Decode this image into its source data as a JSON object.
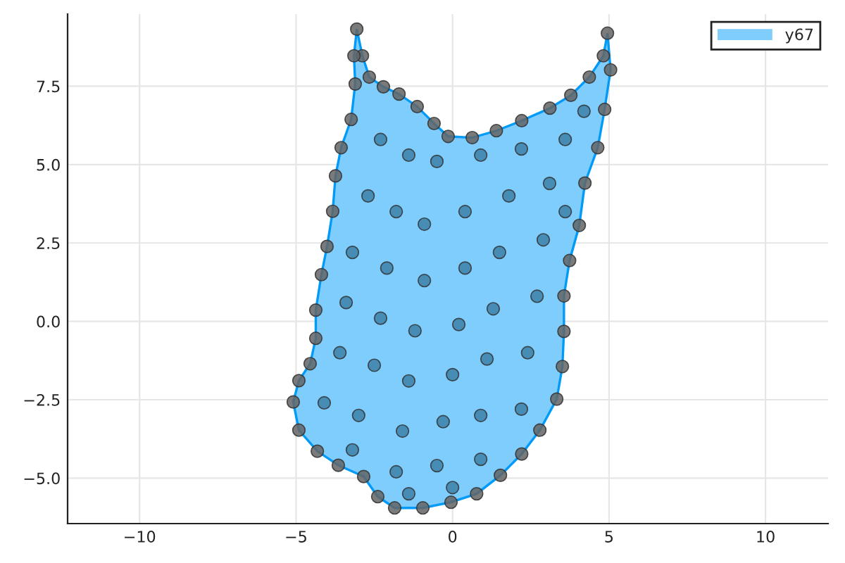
{
  "chart_data": {
    "type": "scatter",
    "xlim": [
      -12.3,
      12.0
    ],
    "ylim": [
      -6.45,
      9.8
    ],
    "xticks": [
      {
        "value": -10,
        "label": "−10"
      },
      {
        "value": -5,
        "label": "−5"
      },
      0,
      5,
      10
    ],
    "yticks": [
      {
        "value": -5,
        "label": "−5.0"
      },
      {
        "value": -2.5,
        "label": "−2.5"
      },
      {
        "value": 0,
        "label": "0.0"
      },
      {
        "value": 2.5,
        "label": "2.5"
      },
      {
        "value": 5.0,
        "label": "5.0"
      },
      {
        "value": 7.5,
        "label": "7.5"
      }
    ],
    "grid": true,
    "legend": "top right",
    "series": [
      {
        "name": "y67",
        "type": "area",
        "color": "#7fcdfd",
        "x": [
          -3.06,
          -2.88,
          -2.66,
          -2.21,
          -1.71,
          -1.13,
          -0.59,
          -0.14,
          0.63,
          1.4,
          2.21,
          3.11,
          3.78,
          4.37,
          4.82,
          4.95,
          5.05,
          4.86,
          4.64,
          4.23,
          4.05,
          3.74,
          3.56,
          3.56,
          3.51,
          3.33,
          2.79,
          2.21,
          1.53,
          0.77,
          -0.05,
          -0.95,
          -1.85,
          -2.39,
          -2.84,
          -3.65,
          -4.32,
          -4.91,
          -5.09,
          -4.91,
          -4.55,
          -4.37,
          -4.37,
          -4.19,
          -4.01,
          -3.83,
          -3.74,
          -3.56,
          -3.24,
          -3.11,
          -3.15
        ],
        "values": [
          9.32,
          8.47,
          7.79,
          7.48,
          7.25,
          6.85,
          6.31,
          5.9,
          5.86,
          6.08,
          6.4,
          6.8,
          7.21,
          7.79,
          8.47,
          9.19,
          8.02,
          6.76,
          5.54,
          4.41,
          3.06,
          1.94,
          0.81,
          -0.32,
          -1.44,
          -2.48,
          -3.47,
          -4.23,
          -4.91,
          -5.5,
          -5.77,
          -5.95,
          -5.95,
          -5.59,
          -4.95,
          -4.59,
          -4.14,
          -3.47,
          -2.57,
          -1.89,
          -1.35,
          -0.54,
          0.36,
          1.49,
          2.39,
          3.51,
          4.64,
          5.54,
          6.44,
          7.57,
          8.47
        ]
      },
      {
        "color": "#646464",
        "marker": "circle",
        "x": [
          -3.06,
          -2.88,
          -2.66,
          -2.21,
          -1.71,
          -1.13,
          -0.59,
          -0.14,
          0.63,
          1.4,
          2.21,
          3.11,
          3.78,
          4.37,
          4.82,
          4.95,
          5.05,
          4.86,
          4.64,
          4.23,
          4.05,
          3.74,
          3.56,
          3.56,
          3.51,
          3.33,
          2.79,
          2.21,
          1.53,
          0.77,
          -0.05,
          -0.95,
          -1.85,
          -2.39,
          -2.84,
          -3.65,
          -4.32,
          -4.91,
          -5.09,
          -4.91,
          -4.55,
          -4.37,
          -4.37,
          -4.19,
          -4.01,
          -3.83,
          -3.74,
          -3.56,
          -3.24,
          -3.11,
          -3.15
        ],
        "values": [
          9.32,
          8.47,
          7.79,
          7.48,
          7.25,
          6.85,
          6.31,
          5.9,
          5.86,
          6.08,
          6.4,
          6.8,
          7.21,
          7.79,
          8.47,
          9.19,
          8.02,
          6.76,
          5.54,
          4.41,
          3.06,
          1.94,
          0.81,
          -0.32,
          -1.44,
          -2.48,
          -3.47,
          -4.23,
          -4.91,
          -5.5,
          -5.77,
          -5.95,
          -5.95,
          -5.59,
          -4.95,
          -4.59,
          -4.14,
          -3.47,
          -2.57,
          -1.89,
          -1.35,
          -0.54,
          0.36,
          1.49,
          2.39,
          3.51,
          4.64,
          5.54,
          6.44,
          7.57,
          8.47
        ]
      },
      {
        "color": "#3d80a8",
        "marker": "circle",
        "x": [
          -2.3,
          -1.4,
          -0.5,
          0.9,
          2.2,
          3.6,
          4.2,
          -2.7,
          -1.8,
          -0.9,
          0.4,
          1.8,
          3.1,
          -3.2,
          -2.1,
          -0.9,
          0.4,
          1.5,
          2.9,
          3.6,
          -3.4,
          -2.3,
          -1.2,
          0.2,
          1.3,
          2.7,
          -3.6,
          -2.5,
          -1.4,
          0.0,
          1.1,
          2.4,
          -4.1,
          -3.0,
          -1.6,
          -0.3,
          0.9,
          2.2,
          -3.2,
          -1.8,
          -0.5,
          0.9,
          -1.4,
          0.0
        ],
        "values": [
          5.8,
          5.3,
          5.1,
          5.3,
          5.5,
          5.8,
          6.7,
          4.0,
          3.5,
          3.1,
          3.5,
          4.0,
          4.4,
          2.2,
          1.7,
          1.3,
          1.7,
          2.2,
          2.6,
          3.5,
          0.6,
          0.1,
          -0.3,
          -0.1,
          0.4,
          0.8,
          -1.0,
          -1.4,
          -1.9,
          -1.7,
          -1.2,
          -1.0,
          -2.6,
          -3.0,
          -3.5,
          -3.2,
          -3.0,
          -2.8,
          -4.1,
          -4.8,
          -4.6,
          -4.4,
          -5.5,
          -5.3
        ]
      }
    ]
  }
}
